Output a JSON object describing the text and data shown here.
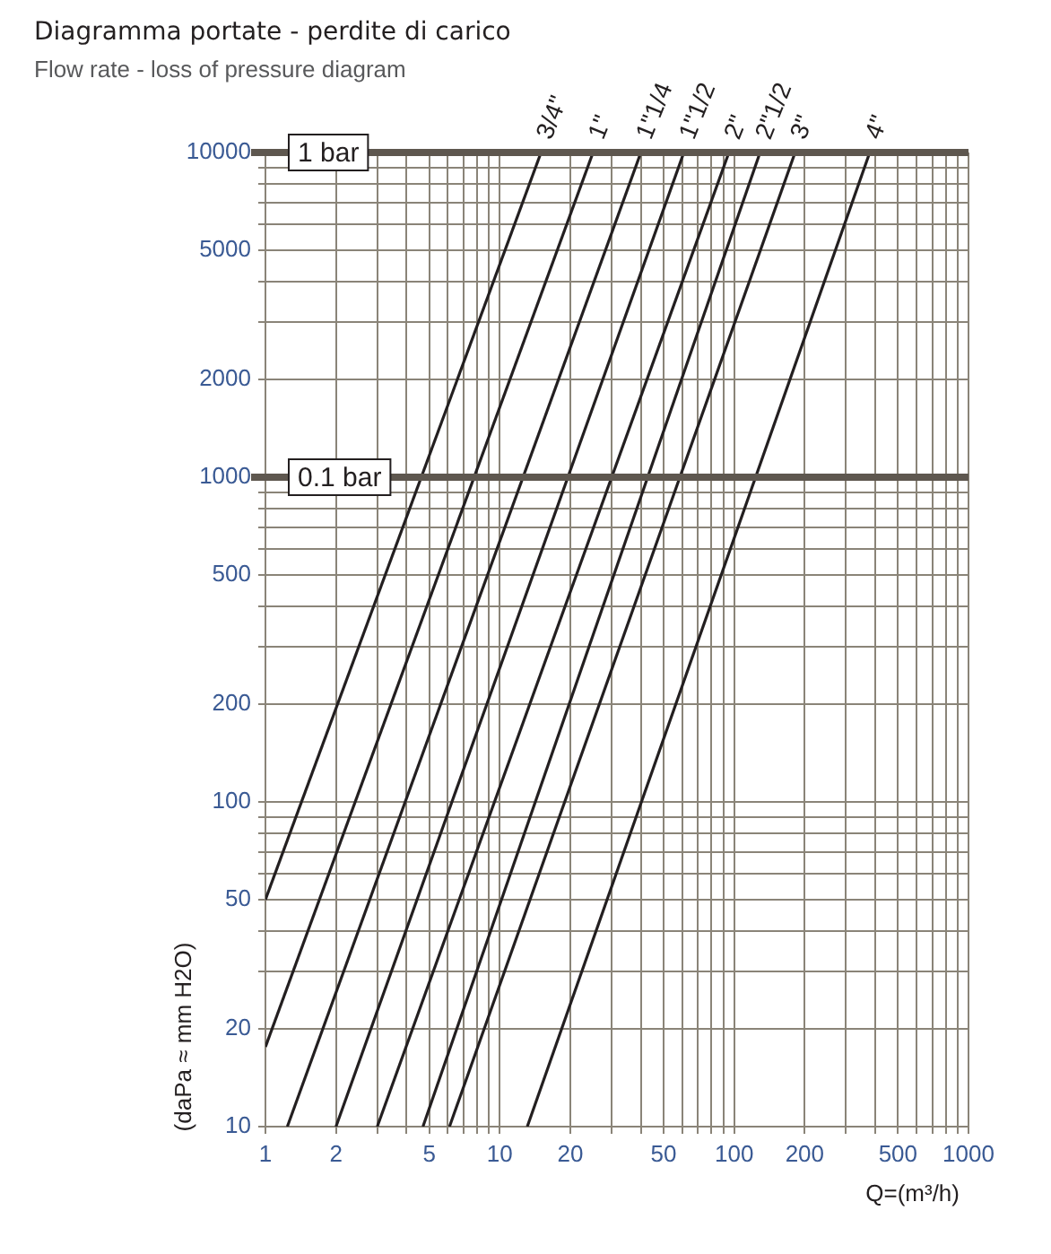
{
  "chart_data": {
    "type": "line",
    "title": "Diagramma portate - perdite di carico",
    "subtitle": "Flow rate - loss of pressure diagram",
    "xlabel": "Q=(m³/h)",
    "ylabel": "(daPa ≈ mm H2O)",
    "log": "xy",
    "grid": true,
    "legend": false,
    "marker": "none",
    "line_style": "solid",
    "xlim": [
      1,
      1000
    ],
    "ylim": [
      10,
      10000
    ],
    "xticks": [
      1,
      2,
      {
        "value": 3,
        "label": null
      },
      {
        "value": 4,
        "label": null
      },
      5,
      {
        "value": 6,
        "label": null
      },
      {
        "value": 7,
        "label": null
      },
      {
        "value": 8,
        "label": null
      },
      {
        "value": 9,
        "label": null
      },
      10,
      20,
      {
        "value": 30,
        "label": null
      },
      {
        "value": 40,
        "label": null
      },
      50,
      {
        "value": 60,
        "label": null
      },
      {
        "value": 70,
        "label": null
      },
      {
        "value": 80,
        "label": null
      },
      {
        "value": 90,
        "label": null
      },
      100,
      200,
      {
        "value": 300,
        "label": null
      },
      {
        "value": 400,
        "label": null
      },
      500,
      {
        "value": 600,
        "label": null
      },
      {
        "value": 700,
        "label": null
      },
      {
        "value": 800,
        "label": null
      },
      {
        "value": 900,
        "label": null
      },
      1000
    ],
    "yticks": [
      10,
      20,
      {
        "value": 30,
        "label": null
      },
      {
        "value": 40,
        "label": null
      },
      50,
      {
        "value": 60,
        "label": null
      },
      {
        "value": 70,
        "label": null
      },
      {
        "value": 80,
        "label": null
      },
      {
        "value": 90,
        "label": null
      },
      100,
      200,
      {
        "value": 300,
        "label": null
      },
      {
        "value": 400,
        "label": null
      },
      500,
      {
        "value": 600,
        "label": null
      },
      {
        "value": 700,
        "label": null
      },
      {
        "value": 800,
        "label": null
      },
      {
        "value": 900,
        "label": null
      },
      1000,
      2000,
      {
        "value": 3000,
        "label": null
      },
      {
        "value": 4000,
        "label": null
      },
      5000,
      {
        "value": 6000,
        "label": null
      },
      {
        "value": 7000,
        "label": null
      },
      {
        "value": 8000,
        "label": null
      },
      {
        "value": 9000,
        "label": null
      },
      10000
    ],
    "ref_lines": [
      {
        "axis": "y",
        "value": 10000,
        "label": "1 bar",
        "color": "#5e574f"
      },
      {
        "axis": "y",
        "value": 1000,
        "label": "0.1 bar",
        "color": "#5e574f"
      }
    ],
    "series": [
      {
        "name": "3/4\"",
        "color": "#231f20",
        "x": [
          1,
          15
        ],
        "values": [
          50,
          10000
        ]
      },
      {
        "name": "1\"",
        "color": "#231f20",
        "x": [
          1,
          25
        ],
        "values": [
          17.6,
          10000
        ]
      },
      {
        "name": "1\"1/4",
        "color": "#231f20",
        "x": [
          1.24,
          40
        ],
        "values": [
          10,
          10000
        ]
      },
      {
        "name": "1\"1/2",
        "color": "#231f20",
        "x": [
          2.0,
          61
        ],
        "values": [
          10,
          10000
        ]
      },
      {
        "name": "2\"",
        "color": "#231f20",
        "x": [
          3.0,
          95
        ],
        "values": [
          10,
          10000
        ]
      },
      {
        "name": "2\"1/2",
        "color": "#231f20",
        "x": [
          4.7,
          129
        ],
        "values": [
          10,
          10000
        ]
      },
      {
        "name": "3\"",
        "color": "#231f20",
        "x": [
          6.1,
          182
        ],
        "values": [
          10,
          10000
        ]
      },
      {
        "name": "4\"",
        "color": "#231f20",
        "x": [
          13.1,
          379
        ],
        "values": [
          10,
          10000
        ]
      }
    ]
  }
}
